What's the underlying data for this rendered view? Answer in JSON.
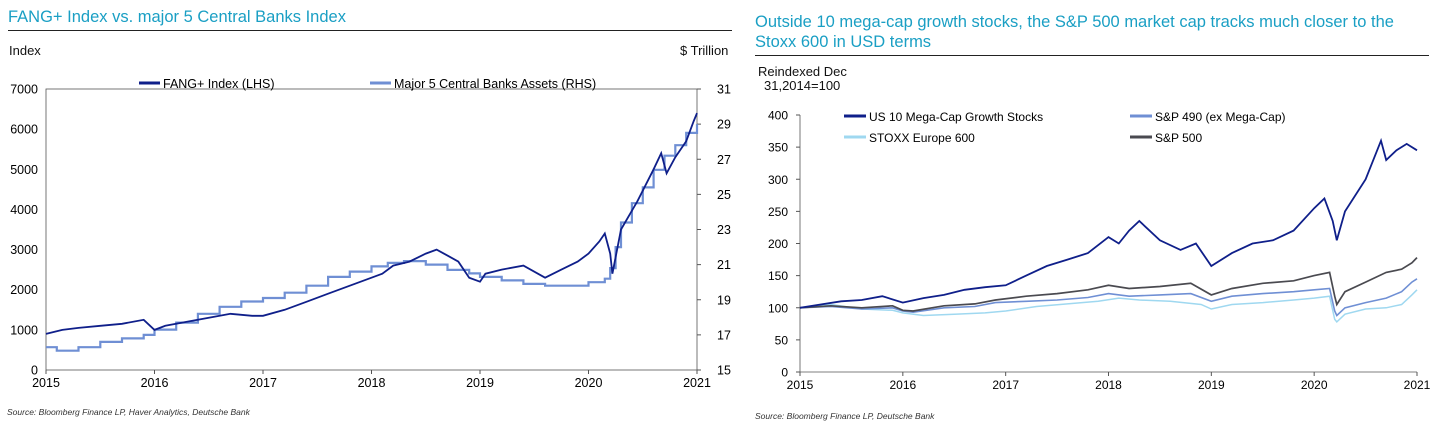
{
  "chart_data": [
    {
      "type": "line",
      "title": "FANG+ Index vs. major 5 Central Banks Index",
      "ylabel_left": "Index",
      "ylabel_right": "$ Trillion",
      "source": "Source: Bloomberg Finance LP, Haver Analytics, Deutsche Bank",
      "xlim": [
        2015,
        2021
      ],
      "x_ticks": [
        "2015",
        "2016",
        "2017",
        "2018",
        "2019",
        "2020",
        "2021"
      ],
      "ylim_left": [
        0,
        7000
      ],
      "y_ticks_left": [
        "0",
        "1000",
        "2000",
        "3000",
        "4000",
        "5000",
        "6000",
        "7000"
      ],
      "ylim_right": [
        15,
        31
      ],
      "y_ticks_right": [
        "15",
        "17",
        "19",
        "21",
        "23",
        "25",
        "27",
        "29",
        "31"
      ],
      "colors": {
        "fang": "#0f1f8a",
        "cb": "#6f8fd4"
      },
      "series": [
        {
          "name": "FANG+ Index (LHS)",
          "axis": "left",
          "x": [
            2015.0,
            2015.15,
            2015.3,
            2015.5,
            2015.7,
            2015.9,
            2016.0,
            2016.1,
            2016.3,
            2016.5,
            2016.7,
            2016.9,
            2017.0,
            2017.2,
            2017.4,
            2017.6,
            2017.8,
            2018.0,
            2018.1,
            2018.2,
            2018.35,
            2018.5,
            2018.6,
            2018.7,
            2018.8,
            2018.9,
            2019.0,
            2019.05,
            2019.2,
            2019.4,
            2019.6,
            2019.75,
            2019.9,
            2020.0,
            2020.1,
            2020.15,
            2020.2,
            2020.22,
            2020.3,
            2020.45,
            2020.6,
            2020.67,
            2020.72,
            2020.8,
            2020.9,
            2020.97,
            2021.0
          ],
          "values": [
            900,
            1000,
            1050,
            1100,
            1150,
            1250,
            1000,
            1100,
            1200,
            1300,
            1400,
            1350,
            1350,
            1500,
            1700,
            1900,
            2100,
            2300,
            2400,
            2600,
            2700,
            2900,
            3000,
            2850,
            2700,
            2300,
            2200,
            2400,
            2500,
            2600,
            2300,
            2500,
            2700,
            2900,
            3200,
            3400,
            2900,
            2400,
            3500,
            4200,
            5000,
            5400,
            4900,
            5300,
            5700,
            6200,
            6400
          ]
        },
        {
          "name": "Major 5 Central Banks Assets (RHS)",
          "axis": "right",
          "x": [
            2015.0,
            2015.1,
            2015.3,
            2015.5,
            2015.7,
            2015.9,
            2016.0,
            2016.2,
            2016.4,
            2016.6,
            2016.8,
            2017.0,
            2017.2,
            2017.4,
            2017.6,
            2017.8,
            2018.0,
            2018.15,
            2018.3,
            2018.5,
            2018.7,
            2018.9,
            2019.0,
            2019.2,
            2019.4,
            2019.6,
            2019.8,
            2020.0,
            2020.15,
            2020.2,
            2020.25,
            2020.3,
            2020.4,
            2020.5,
            2020.6,
            2020.7,
            2020.8,
            2020.9,
            2021.0
          ],
          "values": [
            16.3,
            16.1,
            16.3,
            16.6,
            16.8,
            17.0,
            17.3,
            17.7,
            18.2,
            18.6,
            18.9,
            19.1,
            19.4,
            19.8,
            20.3,
            20.6,
            20.9,
            21.1,
            21.2,
            21.0,
            20.7,
            20.5,
            20.3,
            20.1,
            19.9,
            19.8,
            19.8,
            20.0,
            20.2,
            20.8,
            22.0,
            23.4,
            24.5,
            25.4,
            26.4,
            27.2,
            27.8,
            28.5,
            29.0
          ]
        }
      ]
    },
    {
      "type": "line",
      "title": "Outside 10 mega-cap growth stocks, the S&P 500 market cap tracks much closer to the Stoxx 600 in USD terms",
      "ylabel": "Reindexed Dec 31,2014=100",
      "ylabel_line1": "Reindexed Dec",
      "ylabel_line2": "31,2014=100",
      "source": "Source: Bloomberg Finance LP, Deutsche Bank",
      "xlim": [
        2015,
        2021
      ],
      "x_ticks": [
        "2015",
        "2016",
        "2017",
        "2018",
        "2019",
        "2020",
        "2021"
      ],
      "ylim": [
        0,
        400
      ],
      "y_ticks": [
        "0",
        "50",
        "100",
        "150",
        "200",
        "250",
        "300",
        "350",
        "400"
      ],
      "colors": {
        "mega": "#0f1f8a",
        "sp490": "#6f8fd4",
        "stoxx": "#9fd8f0",
        "sp500": "#4a4a50"
      },
      "series": [
        {
          "name": "US 10 Mega-Cap Growth Stocks",
          "x": [
            2015.0,
            2015.2,
            2015.4,
            2015.6,
            2015.8,
            2016.0,
            2016.2,
            2016.4,
            2016.6,
            2016.8,
            2017.0,
            2017.2,
            2017.4,
            2017.6,
            2017.8,
            2018.0,
            2018.1,
            2018.2,
            2018.3,
            2018.5,
            2018.7,
            2018.85,
            2019.0,
            2019.2,
            2019.4,
            2019.6,
            2019.8,
            2020.0,
            2020.1,
            2020.18,
            2020.22,
            2020.3,
            2020.5,
            2020.65,
            2020.7,
            2020.8,
            2020.9,
            2021.0
          ],
          "values": [
            100,
            105,
            110,
            112,
            118,
            108,
            115,
            120,
            128,
            132,
            135,
            150,
            165,
            175,
            185,
            210,
            200,
            220,
            235,
            205,
            190,
            200,
            165,
            185,
            200,
            205,
            220,
            255,
            270,
            235,
            205,
            250,
            300,
            360,
            330,
            345,
            355,
            345
          ]
        },
        {
          "name": "S&P 490 (ex Mega-Cap)",
          "x": [
            2015.0,
            2015.3,
            2015.6,
            2015.9,
            2016.0,
            2016.1,
            2016.4,
            2016.7,
            2016.9,
            2017.2,
            2017.5,
            2017.8,
            2018.0,
            2018.2,
            2018.5,
            2018.8,
            2019.0,
            2019.2,
            2019.5,
            2019.8,
            2020.0,
            2020.15,
            2020.2,
            2020.22,
            2020.3,
            2020.5,
            2020.7,
            2020.85,
            2020.95,
            2021.0
          ],
          "values": [
            100,
            102,
            98,
            100,
            95,
            93,
            100,
            102,
            108,
            110,
            112,
            116,
            122,
            118,
            120,
            122,
            110,
            118,
            122,
            125,
            128,
            130,
            95,
            88,
            100,
            108,
            115,
            125,
            140,
            145
          ]
        },
        {
          "name": "STOXX Europe 600",
          "x": [
            2015.0,
            2015.3,
            2015.6,
            2015.9,
            2016.0,
            2016.2,
            2016.5,
            2016.8,
            2017.0,
            2017.3,
            2017.6,
            2017.9,
            2018.1,
            2018.3,
            2018.6,
            2018.9,
            2019.0,
            2019.2,
            2019.5,
            2019.8,
            2020.0,
            2020.15,
            2020.2,
            2020.22,
            2020.3,
            2020.5,
            2020.7,
            2020.85,
            2020.95,
            2021.0
          ],
          "values": [
            100,
            105,
            98,
            96,
            92,
            88,
            90,
            92,
            95,
            102,
            106,
            110,
            115,
            112,
            110,
            105,
            98,
            105,
            108,
            112,
            115,
            118,
            82,
            78,
            90,
            98,
            100,
            105,
            120,
            128
          ]
        },
        {
          "name": "S&P 500",
          "x": [
            2015.0,
            2015.3,
            2015.6,
            2015.9,
            2016.0,
            2016.1,
            2016.4,
            2016.7,
            2016.9,
            2017.2,
            2017.5,
            2017.8,
            2018.0,
            2018.2,
            2018.5,
            2018.8,
            2019.0,
            2019.2,
            2019.5,
            2019.8,
            2020.0,
            2020.15,
            2020.2,
            2020.22,
            2020.3,
            2020.5,
            2020.7,
            2020.85,
            2020.95,
            2021.0
          ],
          "values": [
            100,
            103,
            100,
            103,
            96,
            95,
            103,
            106,
            112,
            118,
            122,
            128,
            135,
            130,
            133,
            138,
            120,
            130,
            138,
            142,
            150,
            155,
            118,
            105,
            125,
            140,
            155,
            160,
            170,
            178
          ]
        }
      ]
    }
  ]
}
